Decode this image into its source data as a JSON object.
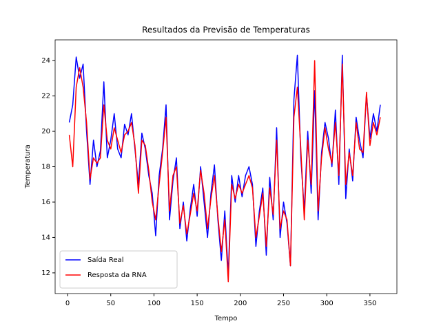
{
  "chart_data": {
    "type": "line",
    "title": "Resultados da Previsão de Temperaturas",
    "xlabel": "Tempo",
    "ylabel": "Temperatura",
    "x": [
      2,
      6,
      10,
      14,
      18,
      22,
      26,
      30,
      34,
      38,
      42,
      46,
      50,
      54,
      58,
      62,
      66,
      70,
      74,
      78,
      82,
      86,
      90,
      94,
      98,
      102,
      106,
      110,
      114,
      118,
      122,
      126,
      130,
      134,
      138,
      142,
      146,
      150,
      154,
      158,
      162,
      166,
      170,
      174,
      178,
      182,
      186,
      190,
      194,
      198,
      202,
      206,
      210,
      214,
      218,
      222,
      226,
      230,
      234,
      238,
      242,
      246,
      250,
      254,
      258,
      262,
      266,
      270,
      274,
      278,
      282,
      286,
      290,
      294,
      298,
      302,
      306,
      310,
      314,
      318,
      322,
      326,
      330,
      334,
      338,
      342,
      346,
      350,
      354,
      358,
      362
    ],
    "series": [
      {
        "name": "Saída Real",
        "color": "#0000ff",
        "values": [
          20.5,
          21.5,
          24.2,
          23.0,
          23.8,
          20.0,
          17.0,
          19.5,
          18.0,
          18.9,
          22.8,
          18.5,
          19.5,
          21.0,
          19.0,
          18.5,
          20.4,
          19.8,
          21.0,
          19.0,
          17.0,
          19.9,
          19.0,
          17.5,
          16.5,
          14.1,
          17.5,
          19.0,
          21.5,
          15.0,
          17.2,
          18.5,
          14.5,
          16.0,
          13.8,
          15.6,
          17.0,
          15.2,
          18.0,
          16.0,
          14.0,
          16.5,
          18.1,
          15.0,
          12.7,
          15.5,
          11.9,
          17.5,
          16.0,
          17.5,
          16.3,
          17.5,
          18.0,
          17.0,
          13.5,
          15.5,
          16.8,
          13.0,
          17.4,
          15.0,
          20.2,
          14.0,
          16.0,
          14.8,
          12.4,
          21.8,
          24.3,
          18.5,
          15.5,
          20.0,
          16.5,
          22.3,
          15.0,
          18.8,
          20.5,
          19.6,
          18.0,
          21.2,
          17.0,
          24.3,
          16.2,
          19.0,
          17.2,
          20.8,
          19.5,
          18.5,
          22.1,
          19.6,
          21.0,
          20.0,
          21.5
        ]
      },
      {
        "name": "Resposta da RNA",
        "color": "#ff0000",
        "values": [
          19.8,
          18.0,
          22.5,
          23.6,
          22.5,
          20.5,
          17.3,
          18.5,
          18.2,
          18.5,
          21.5,
          19.5,
          19.0,
          20.2,
          19.5,
          18.8,
          19.8,
          20.0,
          20.5,
          19.2,
          16.5,
          19.5,
          19.2,
          17.8,
          16.0,
          15.0,
          17.0,
          18.8,
          20.8,
          15.5,
          17.5,
          18.0,
          14.8,
          15.8,
          14.2,
          15.3,
          16.5,
          15.5,
          17.8,
          16.5,
          14.5,
          16.2,
          17.5,
          15.2,
          13.2,
          15.0,
          11.5,
          17.0,
          16.2,
          17.0,
          16.5,
          17.0,
          17.5,
          16.8,
          14.0,
          15.2,
          16.5,
          13.5,
          16.8,
          15.3,
          19.5,
          14.5,
          15.5,
          15.0,
          12.4,
          20.8,
          22.5,
          19.0,
          15.0,
          19.5,
          17.0,
          24.0,
          15.5,
          18.5,
          20.2,
          19.0,
          18.2,
          20.5,
          17.5,
          23.8,
          17.0,
          18.8,
          17.5,
          20.5,
          19.0,
          18.8,
          22.2,
          19.2,
          20.5,
          19.8,
          20.8
        ]
      }
    ],
    "xlim": [
      -14.4,
      381.2
    ],
    "ylim": [
      10.83,
      25.17
    ],
    "xticks": [
      0,
      50,
      100,
      150,
      200,
      250,
      300,
      350
    ],
    "yticks": [
      12,
      14,
      16,
      18,
      20,
      22,
      24
    ],
    "legend": "lower left",
    "grid": false
  }
}
